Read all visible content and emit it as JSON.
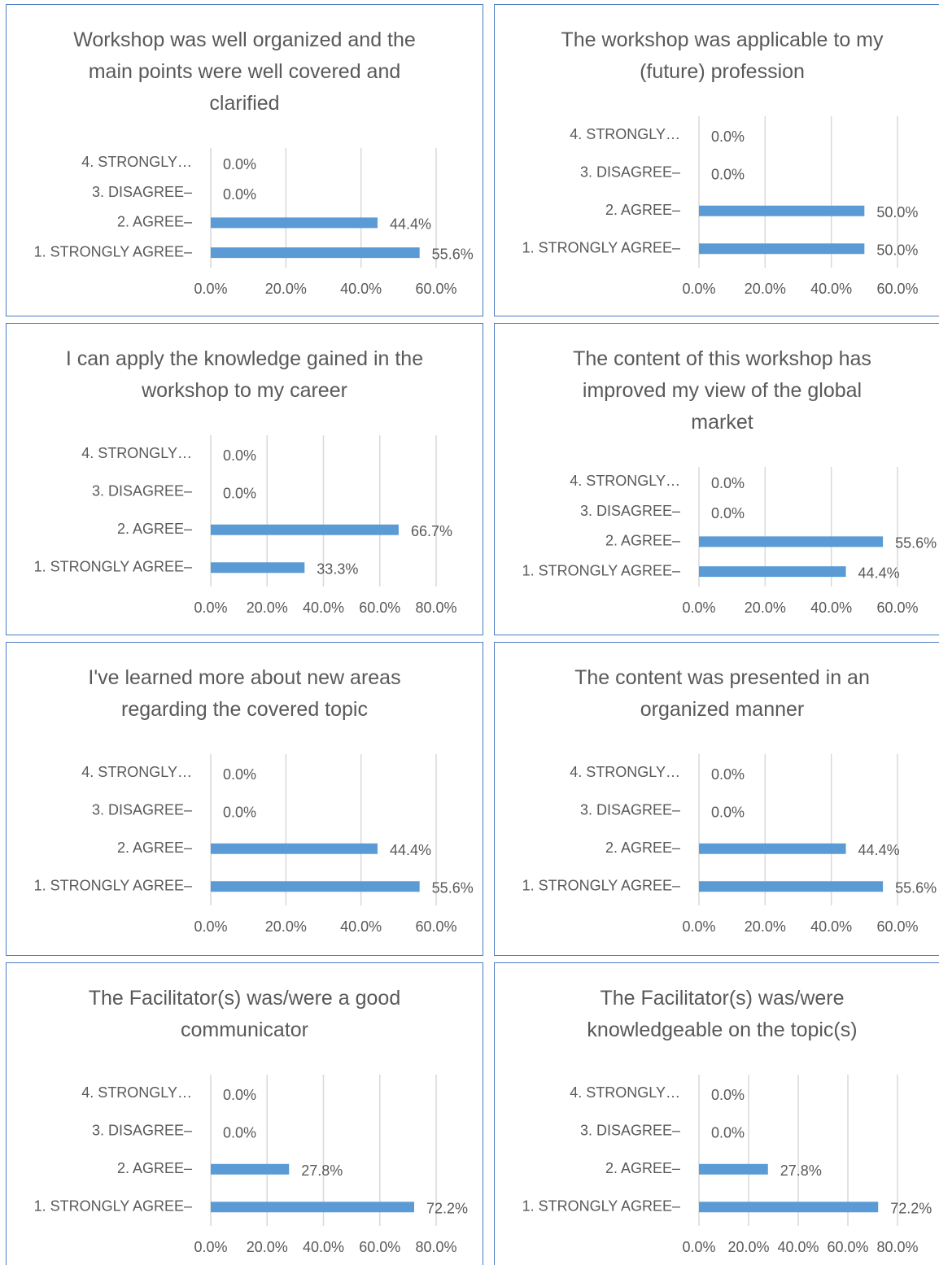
{
  "chart_data": [
    {
      "type": "bar",
      "title": "Workshop was well organized and the main points were well covered and clarified",
      "categories": [
        "4. STRONGLY…",
        "3. DISAGREE–",
        "2. AGREE–",
        "1. STRONGLY AGREE–"
      ],
      "values": [
        0,
        0,
        44.4,
        55.6
      ],
      "value_labels": [
        "0.0%",
        "0.0%",
        "44.4%",
        "55.6%"
      ],
      "color": "#5b9bd5",
      "xlim": [
        0,
        60
      ],
      "xticks": [
        {
          "value": 0,
          "label": "0.0%"
        },
        {
          "value": 20,
          "label": "20.0%"
        },
        {
          "value": 40,
          "label": "40.0%"
        },
        {
          "value": 60,
          "label": "60.0%"
        }
      ],
      "grid": true
    },
    {
      "type": "bar",
      "title": "The workshop was applicable to my (future) profession",
      "categories": [
        "4. STRONGLY…",
        "3. DISAGREE–",
        "2. AGREE–",
        "1. STRONGLY AGREE–"
      ],
      "values": [
        0,
        0,
        50,
        50
      ],
      "value_labels": [
        "0.0%",
        "0.0%",
        "50.0%",
        "50.0%"
      ],
      "color": "#5b9bd5",
      "xlim": [
        0,
        60
      ],
      "xticks": [
        {
          "value": 0,
          "label": "0.0%"
        },
        {
          "value": 20,
          "label": "20.0%"
        },
        {
          "value": 40,
          "label": "40.0%"
        },
        {
          "value": 60,
          "label": "60.0%"
        }
      ],
      "grid": true
    },
    {
      "type": "bar",
      "title": "I can apply the knowledge gained in the workshop to my career",
      "categories": [
        "4. STRONGLY…",
        "3. DISAGREE–",
        "2. AGREE–",
        "1. STRONGLY AGREE–"
      ],
      "values": [
        0,
        0,
        66.7,
        33.3
      ],
      "value_labels": [
        "0.0%",
        "0.0%",
        "66.7%",
        "33.3%"
      ],
      "color": "#5b9bd5",
      "xlim": [
        0,
        80
      ],
      "xticks": [
        {
          "value": 0,
          "label": "0.0%"
        },
        {
          "value": 20,
          "label": "20.0%"
        },
        {
          "value": 40,
          "label": "40.0%"
        },
        {
          "value": 60,
          "label": "60.0%"
        },
        {
          "value": 80,
          "label": "80.0%"
        }
      ],
      "grid": true
    },
    {
      "type": "bar",
      "title": "The content of this workshop has improved my view of the global market",
      "categories": [
        "4. STRONGLY…",
        "3. DISAGREE–",
        "2. AGREE–",
        "1. STRONGLY AGREE–"
      ],
      "values": [
        0,
        0,
        55.6,
        44.4
      ],
      "value_labels": [
        "0.0%",
        "0.0%",
        "55.6%",
        "44.4%"
      ],
      "color": "#5b9bd5",
      "xlim": [
        0,
        60
      ],
      "xticks": [
        {
          "value": 0,
          "label": "0.0%"
        },
        {
          "value": 20,
          "label": "20.0%"
        },
        {
          "value": 40,
          "label": "40.0%"
        },
        {
          "value": 60,
          "label": "60.0%"
        }
      ],
      "grid": true
    },
    {
      "type": "bar",
      "title": "I've learned more about new areas regarding the covered topic",
      "categories": [
        "4. STRONGLY…",
        "3. DISAGREE–",
        "2. AGREE–",
        "1. STRONGLY AGREE–"
      ],
      "values": [
        0,
        0,
        44.4,
        55.6
      ],
      "value_labels": [
        "0.0%",
        "0.0%",
        "44.4%",
        "55.6%"
      ],
      "color": "#5b9bd5",
      "xlim": [
        0,
        60
      ],
      "xticks": [
        {
          "value": 0,
          "label": "0.0%"
        },
        {
          "value": 20,
          "label": "20.0%"
        },
        {
          "value": 40,
          "label": "40.0%"
        },
        {
          "value": 60,
          "label": "60.0%"
        }
      ],
      "grid": true
    },
    {
      "type": "bar",
      "title": "The content was presented in an organized manner",
      "categories": [
        "4. STRONGLY…",
        "3. DISAGREE–",
        "2. AGREE–",
        "1. STRONGLY AGREE–"
      ],
      "values": [
        0,
        0,
        44.4,
        55.6
      ],
      "value_labels": [
        "0.0%",
        "0.0%",
        "44.4%",
        "55.6%"
      ],
      "color": "#5b9bd5",
      "xlim": [
        0,
        60
      ],
      "xticks": [
        {
          "value": 0,
          "label": "0.0%"
        },
        {
          "value": 20,
          "label": "20.0%"
        },
        {
          "value": 40,
          "label": "40.0%"
        },
        {
          "value": 60,
          "label": "60.0%"
        }
      ],
      "grid": true
    },
    {
      "type": "bar",
      "title": "The Facilitator(s) was/were a good communicator",
      "categories": [
        "4. STRONGLY…",
        "3. DISAGREE–",
        "2. AGREE–",
        "1. STRONGLY AGREE–"
      ],
      "values": [
        0,
        0,
        27.8,
        72.2
      ],
      "value_labels": [
        "0.0%",
        "0.0%",
        "27.8%",
        "72.2%"
      ],
      "color": "#5b9bd5",
      "xlim": [
        0,
        80
      ],
      "xticks": [
        {
          "value": 0,
          "label": "0.0%"
        },
        {
          "value": 20,
          "label": "20.0%"
        },
        {
          "value": 40,
          "label": "40.0%"
        },
        {
          "value": 60,
          "label": "60.0%"
        },
        {
          "value": 80,
          "label": "80.0%"
        }
      ],
      "grid": true
    },
    {
      "type": "bar",
      "title": "The Facilitator(s) was/were knowledgeable on the topic(s)",
      "categories": [
        "4. STRONGLY…",
        "3. DISAGREE–",
        "2. AGREE–",
        "1. STRONGLY AGREE–"
      ],
      "values": [
        0,
        0,
        27.8,
        72.2
      ],
      "value_labels": [
        "0.0%",
        "0.0%",
        "27.8%",
        "72.2%"
      ],
      "color": "#5b9bd5",
      "xlim": [
        0,
        80
      ],
      "xticks": [
        {
          "value": 0,
          "label": "0.0%"
        },
        {
          "value": 20,
          "label": "20.0%"
        },
        {
          "value": 40,
          "label": "40.0%"
        },
        {
          "value": 60,
          "label": "60.0%"
        },
        {
          "value": 80,
          "label": "80.0%"
        }
      ],
      "grid": true
    }
  ]
}
